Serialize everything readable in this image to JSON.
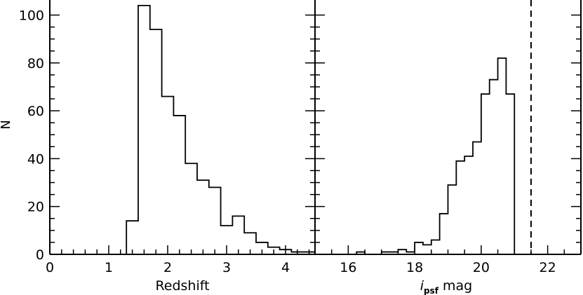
{
  "chart_data": [
    {
      "type": "histogram",
      "xlabel": "Redshift",
      "ylabel": "N",
      "xlim": [
        0,
        4.5
      ],
      "ylim": [
        0,
        105
      ],
      "x_ticks": [
        0,
        1,
        2,
        3,
        4
      ],
      "y_ticks": [
        0,
        20,
        40,
        60,
        80,
        100
      ],
      "bin_width": 0.2,
      "bins": [
        {
          "x0": 1.3,
          "x1": 1.5,
          "count": 14
        },
        {
          "x0": 1.5,
          "x1": 1.7,
          "count": 104
        },
        {
          "x0": 1.7,
          "x1": 1.9,
          "count": 94
        },
        {
          "x0": 1.9,
          "x1": 2.1,
          "count": 66
        },
        {
          "x0": 2.1,
          "x1": 2.3,
          "count": 58
        },
        {
          "x0": 2.3,
          "x1": 2.5,
          "count": 38
        },
        {
          "x0": 2.5,
          "x1": 2.7,
          "count": 31
        },
        {
          "x0": 2.7,
          "x1": 2.9,
          "count": 28
        },
        {
          "x0": 2.9,
          "x1": 3.1,
          "count": 12
        },
        {
          "x0": 3.1,
          "x1": 3.3,
          "count": 16
        },
        {
          "x0": 3.3,
          "x1": 3.5,
          "count": 9
        },
        {
          "x0": 3.5,
          "x1": 3.7,
          "count": 5
        },
        {
          "x0": 3.7,
          "x1": 3.9,
          "count": 3
        },
        {
          "x0": 3.9,
          "x1": 4.1,
          "count": 2
        },
        {
          "x0": 4.1,
          "x1": 4.3,
          "count": 1
        },
        {
          "x0": 4.3,
          "x1": 4.5,
          "count": 1
        }
      ]
    },
    {
      "type": "histogram",
      "xlabel_italic": "i",
      "xlabel_sub": "psf",
      "xlabel_rest": " mag",
      "xlim": [
        15,
        23
      ],
      "ylim": [
        0,
        105
      ],
      "x_ticks": [
        16,
        18,
        20,
        22
      ],
      "bin_width": 0.25,
      "bins": [
        {
          "x0": 16.25,
          "x1": 16.5,
          "count": 1
        },
        {
          "x0": 16.5,
          "x1": 16.75,
          "count": 0
        },
        {
          "x0": 16.75,
          "x1": 17.0,
          "count": 0
        },
        {
          "x0": 17.0,
          "x1": 17.25,
          "count": 1
        },
        {
          "x0": 17.25,
          "x1": 17.5,
          "count": 1
        },
        {
          "x0": 17.5,
          "x1": 17.75,
          "count": 2
        },
        {
          "x0": 17.75,
          "x1": 18.0,
          "count": 1
        },
        {
          "x0": 18.0,
          "x1": 18.25,
          "count": 5
        },
        {
          "x0": 18.25,
          "x1": 18.5,
          "count": 4
        },
        {
          "x0": 18.5,
          "x1": 18.75,
          "count": 6
        },
        {
          "x0": 18.75,
          "x1": 19.0,
          "count": 17
        },
        {
          "x0": 19.0,
          "x1": 19.25,
          "count": 29
        },
        {
          "x0": 19.25,
          "x1": 19.5,
          "count": 39
        },
        {
          "x0": 19.5,
          "x1": 19.75,
          "count": 41
        },
        {
          "x0": 19.75,
          "x1": 20.0,
          "count": 47
        },
        {
          "x0": 20.0,
          "x1": 20.25,
          "count": 67
        },
        {
          "x0": 20.25,
          "x1": 20.5,
          "count": 73
        },
        {
          "x0": 20.5,
          "x1": 20.75,
          "count": 82
        },
        {
          "x0": 20.75,
          "x1": 21.0,
          "count": 67
        }
      ],
      "cutoff_line": 21.0
    }
  ]
}
